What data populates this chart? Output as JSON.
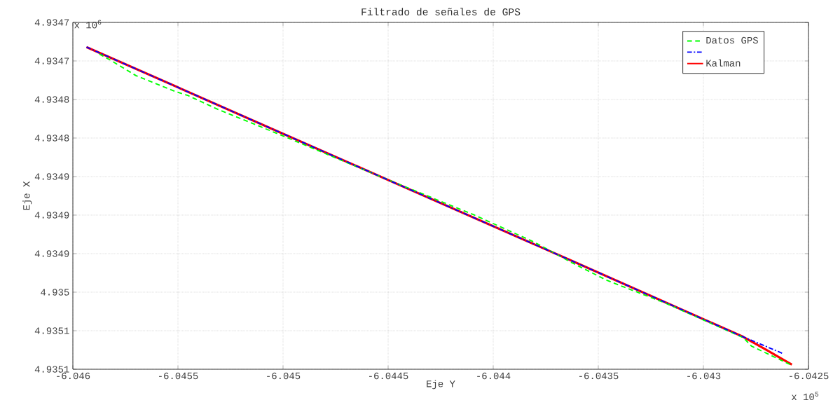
{
  "chart_data": {
    "type": "line",
    "title": "Filtrado de señales de GPS",
    "xlabel": "Eje Y",
    "ylabel": "Eje X",
    "annotations": [
      "x 10$^{6}$",
      "x 10$^{5}$"
    ],
    "xlim": [
      -6.046,
      -6.0425
    ],
    "xticks": [
      -6.046,
      -6.0455,
      -6.045,
      -6.0445,
      -6.044,
      -6.0435,
      -6.043,
      -6.0425
    ],
    "ylim": [
      4.9351,
      4.93465
    ],
    "yticks": [
      {
        "value": 4.93465,
        "label": "4.9347"
      },
      {
        "value": 4.9347,
        "label": "4.9347"
      },
      {
        "value": 4.93475,
        "label": "4.9348"
      },
      {
        "value": 4.9348,
        "label": "4.9348"
      },
      {
        "value": 4.93485,
        "label": "4.9349"
      },
      {
        "value": 4.9349,
        "label": "4.9349"
      },
      {
        "value": 4.93495,
        "label": "4.9349"
      },
      {
        "value": 4.935,
        "label": "4.935"
      },
      {
        "value": 4.93505,
        "label": "4.9351"
      },
      {
        "value": 4.9351,
        "label": "4.9351"
      }
    ],
    "grid": true,
    "legend": "top right",
    "series": [
      {
        "name": "Datos GPS",
        "color": "#00ff00",
        "line_style": "dashed",
        "x": [
          -6.045874,
          -6.045821,
          -6.0457,
          -6.045509,
          -6.045451,
          -6.045308,
          -6.04502,
          -6.044475,
          -6.044089,
          -6.043805,
          -6.043624,
          -6.043456,
          -6.043182,
          -6.04281,
          -6.042771,
          -6.042579
        ],
        "values": [
          4.934691,
          4.934699,
          4.934719,
          4.93474,
          4.934745,
          4.934763,
          4.934795,
          4.934857,
          4.9349,
          4.934935,
          4.934962,
          4.934985,
          4.935014,
          4.935059,
          4.93507,
          4.935095
        ]
      },
      {
        "color": "#0000ff",
        "line_style": "dashdot",
        "x": [
          -6.045935,
          -6.04502,
          -6.043637,
          -6.04281,
          -6.042618
        ],
        "values": [
          4.934682,
          4.934792,
          4.934958,
          4.935058,
          4.93508
        ]
      },
      {
        "name": "Kalman",
        "color": "#ff0000",
        "line_style": "solid",
        "x": [
          -6.045935,
          -6.04502,
          -6.043637,
          -6.04281,
          -6.0427,
          -6.042579
        ],
        "values": [
          4.934682,
          4.934792,
          4.934958,
          4.935058,
          4.935075,
          4.935094
        ]
      }
    ]
  }
}
